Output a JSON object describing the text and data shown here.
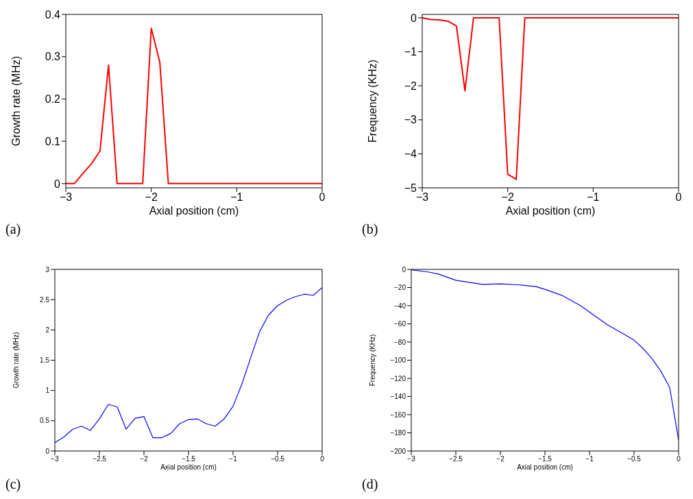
{
  "chart_data": [
    {
      "type": "line",
      "xlabel": "Axial position (cm)",
      "ylabel": "Growth rate (MHz)",
      "annotations": [
        "(a)"
      ],
      "xlim": [
        -3,
        0
      ],
      "xticks": [
        -3,
        -2,
        -1,
        0
      ],
      "ylim": [
        -0.01,
        0.4
      ],
      "yticks": [
        0,
        0.1,
        0.2,
        0.3,
        0.4
      ],
      "grid": false,
      "x": [
        -3,
        -2.9,
        -2.8,
        -2.7,
        -2.6,
        -2.5,
        -2.4,
        -2.3,
        -2.2,
        -2.1,
        -2.0,
        -1.9,
        -1.8,
        -1.5,
        -1,
        -0.5,
        0
      ],
      "series": [
        {
          "color": "#ff0000",
          "values": [
            0,
            0,
            0.024,
            0.047,
            0.077,
            0.28,
            0,
            0,
            0,
            0,
            0.367,
            0.287,
            0,
            0,
            0,
            0,
            0
          ]
        }
      ]
    },
    {
      "type": "line",
      "xlabel": "Axial position (cm)",
      "ylabel": "Frequency (KHz)",
      "annotations": [
        "(b)"
      ],
      "xlim": [
        -3,
        0
      ],
      "xticks": [
        -3,
        -2,
        -1,
        0
      ],
      "ylim": [
        -5,
        0.1
      ],
      "yticks": [
        -5,
        -4,
        -3,
        -2,
        -1,
        0
      ],
      "grid": false,
      "x": [
        -3,
        -2.9,
        -2.8,
        -2.7,
        -2.6,
        -2.5,
        -2.4,
        -2.3,
        -2.2,
        -2.1,
        -2.0,
        -1.9,
        -1.8,
        -1.5,
        -1,
        -0.5,
        0
      ],
      "series": [
        {
          "color": "#ff0000",
          "values": [
            0,
            -0.05,
            -0.06,
            -0.1,
            -0.24,
            -2.15,
            0,
            0,
            0,
            0,
            -4.6,
            -4.75,
            0,
            0,
            0,
            0,
            0
          ]
        }
      ]
    },
    {
      "type": "line",
      "xlabel": "Axial position (cm)",
      "ylabel": "Growth rate (MHz)",
      "annotations": [
        "(c)"
      ],
      "xlim": [
        -3,
        0
      ],
      "xticks": [
        -3,
        -2.5,
        -2,
        -1.5,
        -1,
        -0.5,
        0
      ],
      "ylim": [
        0,
        3
      ],
      "yticks": [
        0,
        0.5,
        1,
        1.5,
        2,
        2.5,
        3
      ],
      "grid": false,
      "x": [
        -3,
        -2.9,
        -2.8,
        -2.7,
        -2.6,
        -2.5,
        -2.4,
        -2.3,
        -2.2,
        -2.1,
        -2.0,
        -1.9,
        -1.8,
        -1.7,
        -1.6,
        -1.5,
        -1.4,
        -1.3,
        -1.2,
        -1.1,
        -1.0,
        -0.9,
        -0.8,
        -0.7,
        -0.6,
        -0.5,
        -0.4,
        -0.3,
        -0.2,
        -0.1,
        0
      ],
      "series": [
        {
          "color": "#0000ff",
          "values": [
            0.14,
            0.23,
            0.36,
            0.41,
            0.34,
            0.53,
            0.77,
            0.73,
            0.36,
            0.54,
            0.57,
            0.22,
            0.22,
            0.29,
            0.45,
            0.52,
            0.53,
            0.45,
            0.41,
            0.53,
            0.74,
            1.11,
            1.55,
            1.98,
            2.25,
            2.4,
            2.49,
            2.55,
            2.59,
            2.57,
            2.7
          ]
        }
      ]
    },
    {
      "type": "line",
      "xlabel": "Axial position (cm)",
      "ylabel": "Frequency (KHz)",
      "annotations": [
        "(d)"
      ],
      "xlim": [
        -3,
        0
      ],
      "xticks": [
        -3,
        -2.5,
        -2,
        -1.5,
        -1,
        -0.5,
        0
      ],
      "ylim": [
        -200,
        0
      ],
      "yticks": [
        -200,
        -180,
        -160,
        -140,
        -120,
        -100,
        -80,
        -60,
        -40,
        -20,
        0
      ],
      "grid": false,
      "x": [
        -3,
        -2.8,
        -2.7,
        -2.5,
        -2.3,
        -2.2,
        -2.0,
        -1.8,
        -1.6,
        -1.5,
        -1.3,
        -1.1,
        -1.0,
        -0.8,
        -0.6,
        -0.5,
        -0.4,
        -0.3,
        -0.2,
        -0.1,
        0
      ],
      "series": [
        {
          "color": "#0000ff",
          "values": [
            -0.5,
            -3,
            -5,
            -12,
            -15,
            -16.5,
            -16,
            -17,
            -19,
            -22,
            -29,
            -40,
            -47,
            -61,
            -72,
            -78,
            -87,
            -98,
            -112,
            -130,
            -188
          ]
        }
      ]
    }
  ]
}
